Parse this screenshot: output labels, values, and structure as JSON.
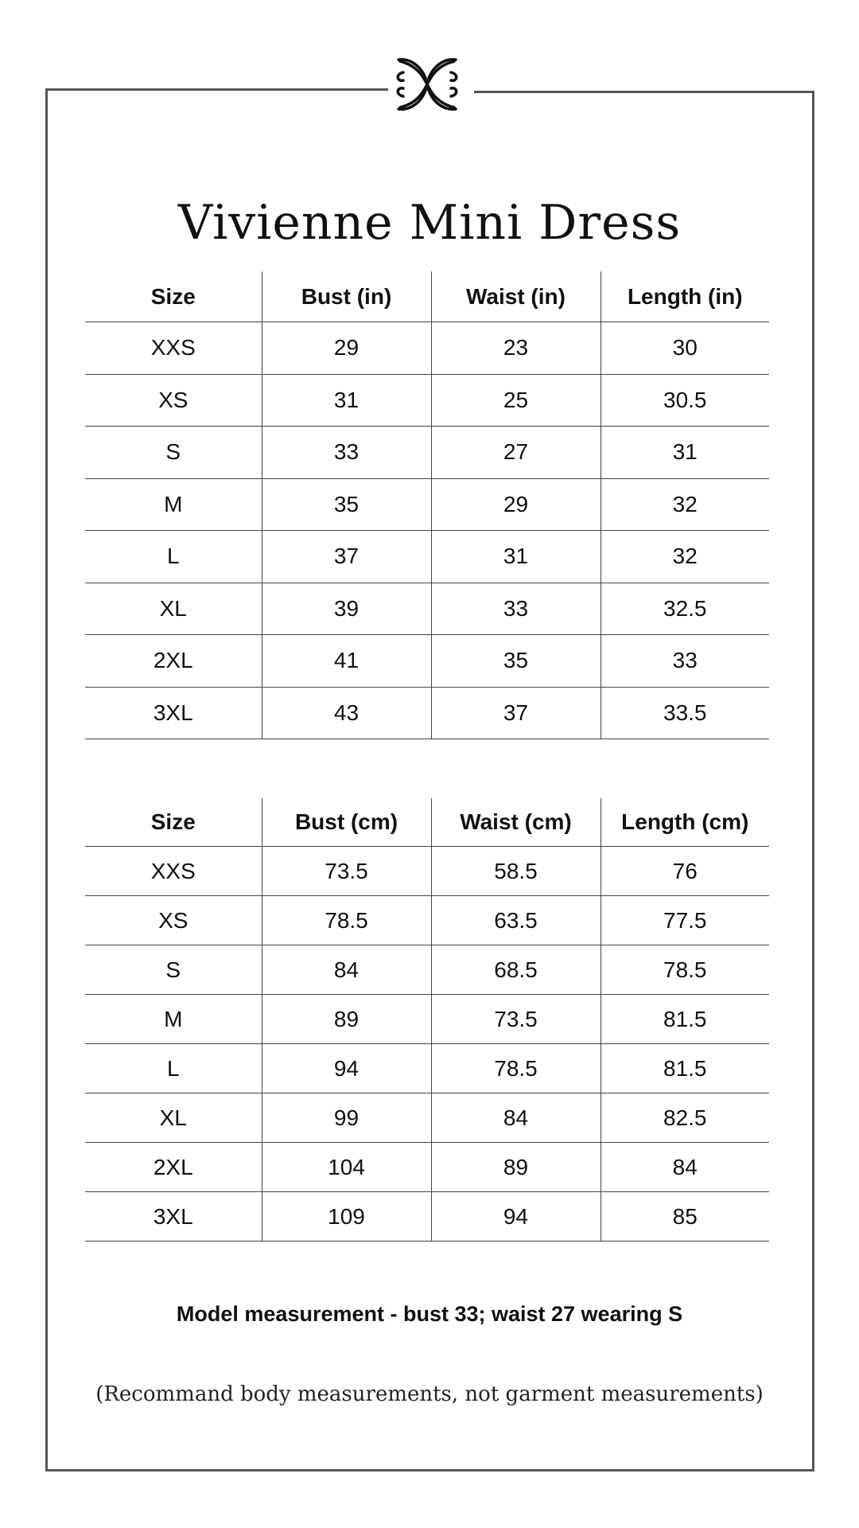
{
  "title": "Vivienne Mini Dress",
  "logo": "ornamental-flourish-logo",
  "table_in": {
    "headers": [
      "Size",
      "Bust (in)",
      "Waist (in)",
      "Length (in)"
    ],
    "rows": [
      [
        "XXS",
        "29",
        "23",
        "30"
      ],
      [
        "XS",
        "31",
        "25",
        "30.5"
      ],
      [
        "S",
        "33",
        "27",
        "31"
      ],
      [
        "M",
        "35",
        "29",
        "32"
      ],
      [
        "L",
        "37",
        "31",
        "32"
      ],
      [
        "XL",
        "39",
        "33",
        "32.5"
      ],
      [
        "2XL",
        "41",
        "35",
        "33"
      ],
      [
        "3XL",
        "43",
        "37",
        "33.5"
      ]
    ]
  },
  "table_cm": {
    "headers": [
      "Size",
      "Bust (cm)",
      "Waist (cm)",
      "Length (cm)"
    ],
    "rows": [
      [
        "XXS",
        "73.5",
        "58.5",
        "76"
      ],
      [
        "XS",
        "78.5",
        "63.5",
        "77.5"
      ],
      [
        "S",
        "84",
        "68.5",
        "78.5"
      ],
      [
        "M",
        "89",
        "73.5",
        "81.5"
      ],
      [
        "L",
        "94",
        "78.5",
        "81.5"
      ],
      [
        "XL",
        "99",
        "84",
        "82.5"
      ],
      [
        "2XL",
        "104",
        "89",
        "84"
      ],
      [
        "3XL",
        "109",
        "94",
        "85"
      ]
    ]
  },
  "model_measurement": "Model measurement - bust 33; waist 27 wearing S",
  "note": "(Recommand body measurements, not garment  measurements)"
}
